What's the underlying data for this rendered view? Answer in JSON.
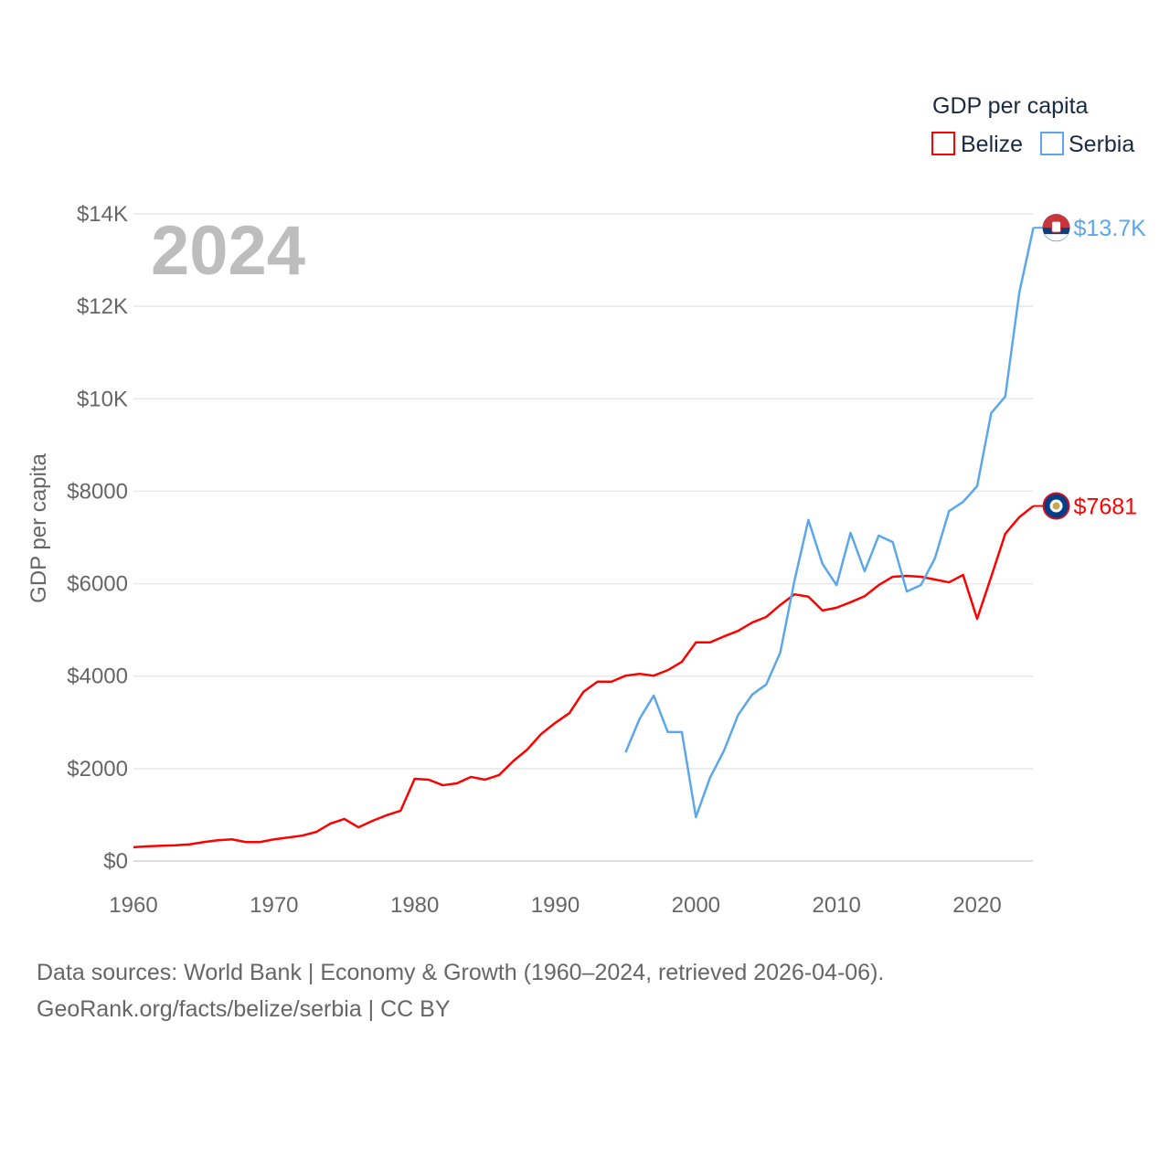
{
  "chart_data": {
    "type": "line",
    "title": "",
    "year_label": "2024",
    "xlabel": "",
    "ylabel": "GDP per capita",
    "xlim": [
      1960,
      2024
    ],
    "ylim": [
      0,
      14000
    ],
    "x_ticks": [
      1960,
      1970,
      1980,
      1990,
      2000,
      2010,
      2020
    ],
    "x_tick_labels": [
      "1960",
      "1970",
      "1980",
      "1990",
      "2000",
      "2010",
      "2020"
    ],
    "y_ticks": [
      0,
      2000,
      4000,
      6000,
      8000,
      10000,
      12000,
      14000
    ],
    "y_tick_labels": [
      "$0",
      "$2000",
      "$4000",
      "$6000",
      "$8000",
      "$10K",
      "$12K",
      "$14K"
    ],
    "grid": true,
    "legend": {
      "title": "GDP per capita",
      "placement": "top-right"
    },
    "series": [
      {
        "name": "Belize",
        "color": "#ff0000",
        "end_label": "$7681",
        "start_year": 1960,
        "values": [
          300,
          320,
          330,
          340,
          360,
          410,
          450,
          470,
          410,
          410,
          470,
          510,
          550,
          630,
          810,
          910,
          730,
          870,
          990,
          1090,
          1780,
          1760,
          1640,
          1680,
          1820,
          1760,
          1860,
          2160,
          2410,
          2750,
          2990,
          3200,
          3660,
          3880,
          3880,
          4010,
          4050,
          4010,
          4130,
          4310,
          4730,
          4730,
          4860,
          4980,
          5160,
          5280,
          5540,
          5770,
          5720,
          5420,
          5480,
          5600,
          5730,
          5970,
          6150,
          6170,
          6150,
          6090,
          6030,
          6190,
          5240,
          6150,
          7080,
          7440,
          7681
        ]
      },
      {
        "name": "Serbia",
        "color": "#5ba7ea",
        "end_label": "$13.7K",
        "start_year": 1995,
        "values": [
          2350,
          3080,
          3580,
          2790,
          2790,
          950,
          1800,
          2390,
          3160,
          3600,
          3820,
          4510,
          6050,
          7380,
          6430,
          5970,
          7100,
          6270,
          7040,
          6900,
          5830,
          5970,
          6550,
          7570,
          7770,
          8110,
          9690,
          10050,
          12300,
          13700
        ]
      }
    ]
  },
  "footer": {
    "line1": "Data sources: World Bank | Economy & Growth (1960–2024, retrieved 2026-04-06).",
    "line2": "GeoRank.org/facts/belize/serbia | CC BY"
  }
}
